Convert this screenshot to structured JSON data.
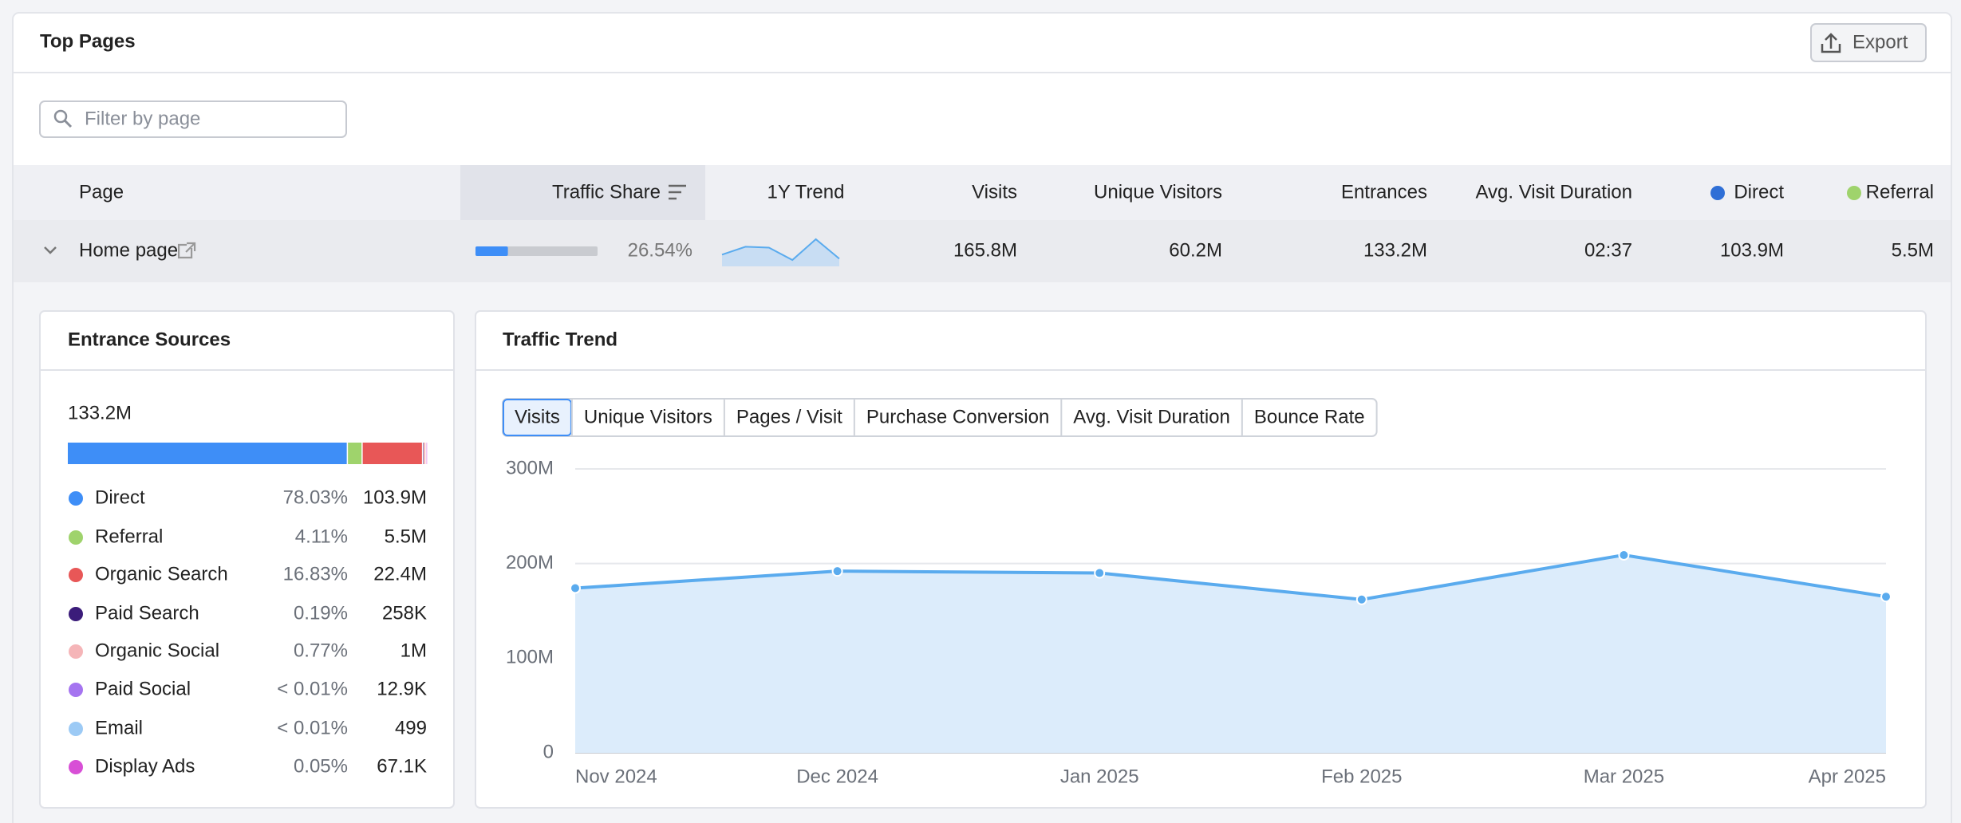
{
  "header": {
    "title": "Top Pages",
    "export_button": "Export"
  },
  "filter": {
    "placeholder": "Filter by page"
  },
  "table": {
    "columns": [
      "Page",
      "Traffic Share",
      "1Y Trend",
      "Visits",
      "Unique Visitors",
      "Entrances",
      "Avg. Visit Duration",
      "Direct",
      "Referral"
    ],
    "direct_color": "#2f6fd6",
    "referral_color": "#9fd36c",
    "row": {
      "page": "Home page",
      "traffic_share": 26.54,
      "traffic_share_label": "26.54%",
      "visits": "165.8M",
      "unique_visitors": "60.2M",
      "entrances": "133.2M",
      "avg_visit_duration": "02:37",
      "direct": "103.9M",
      "referral": "5.5M"
    }
  },
  "entrance_sources": {
    "title": "Entrance Sources",
    "total": "133.2M",
    "rows": [
      {
        "name": "Direct",
        "color": "#3e8ef7",
        "share": 78.03,
        "share_label": "78.03%",
        "value": "103.9M"
      },
      {
        "name": "Referral",
        "color": "#9fd36c",
        "share": 4.11,
        "share_label": "4.11%",
        "value": "5.5M"
      },
      {
        "name": "Organic Search",
        "color": "#e85757",
        "share": 16.83,
        "share_label": "16.83%",
        "value": "22.4M"
      },
      {
        "name": "Paid Search",
        "color": "#3b1c7a",
        "share": 0.19,
        "share_label": "0.19%",
        "value": "258K"
      },
      {
        "name": "Organic Social",
        "color": "#f5b5b8",
        "share": 0.77,
        "share_label": "0.77%",
        "value": "1M"
      },
      {
        "name": "Paid Social",
        "color": "#a574f0",
        "share": null,
        "share_label": "< 0.01%",
        "value": "12.9K"
      },
      {
        "name": "Email",
        "color": "#9ccaf5",
        "share": null,
        "share_label": "< 0.01%",
        "value": "499"
      },
      {
        "name": "Display Ads",
        "color": "#d84fd6",
        "share": 0.05,
        "share_label": "0.05%",
        "value": "67.1K"
      }
    ]
  },
  "traffic_trend": {
    "title": "Traffic Trend",
    "tabs": [
      "Visits",
      "Unique Visitors",
      "Pages / Visit",
      "Purchase Conversion",
      "Avg. Visit Duration",
      "Bounce Rate"
    ],
    "active_tab": 0,
    "chart_data": {
      "type": "line",
      "categories": [
        "Nov 2024",
        "Dec 2024",
        "Jan 2025",
        "Feb 2025",
        "Mar 2025",
        "Apr 2025"
      ],
      "series": [
        {
          "name": "Visits",
          "color": "#5aabee",
          "values": [
            174000000,
            192000000,
            190000000,
            162000000,
            209000000,
            165000000
          ]
        }
      ],
      "ylim": [
        0,
        300000000
      ],
      "yticks": [
        0,
        {
          "value": 100000000,
          "label": "100M"
        },
        {
          "value": 200000000,
          "label": "200M"
        },
        {
          "value": 300000000,
          "label": "300M"
        }
      ],
      "grid": true
    }
  }
}
